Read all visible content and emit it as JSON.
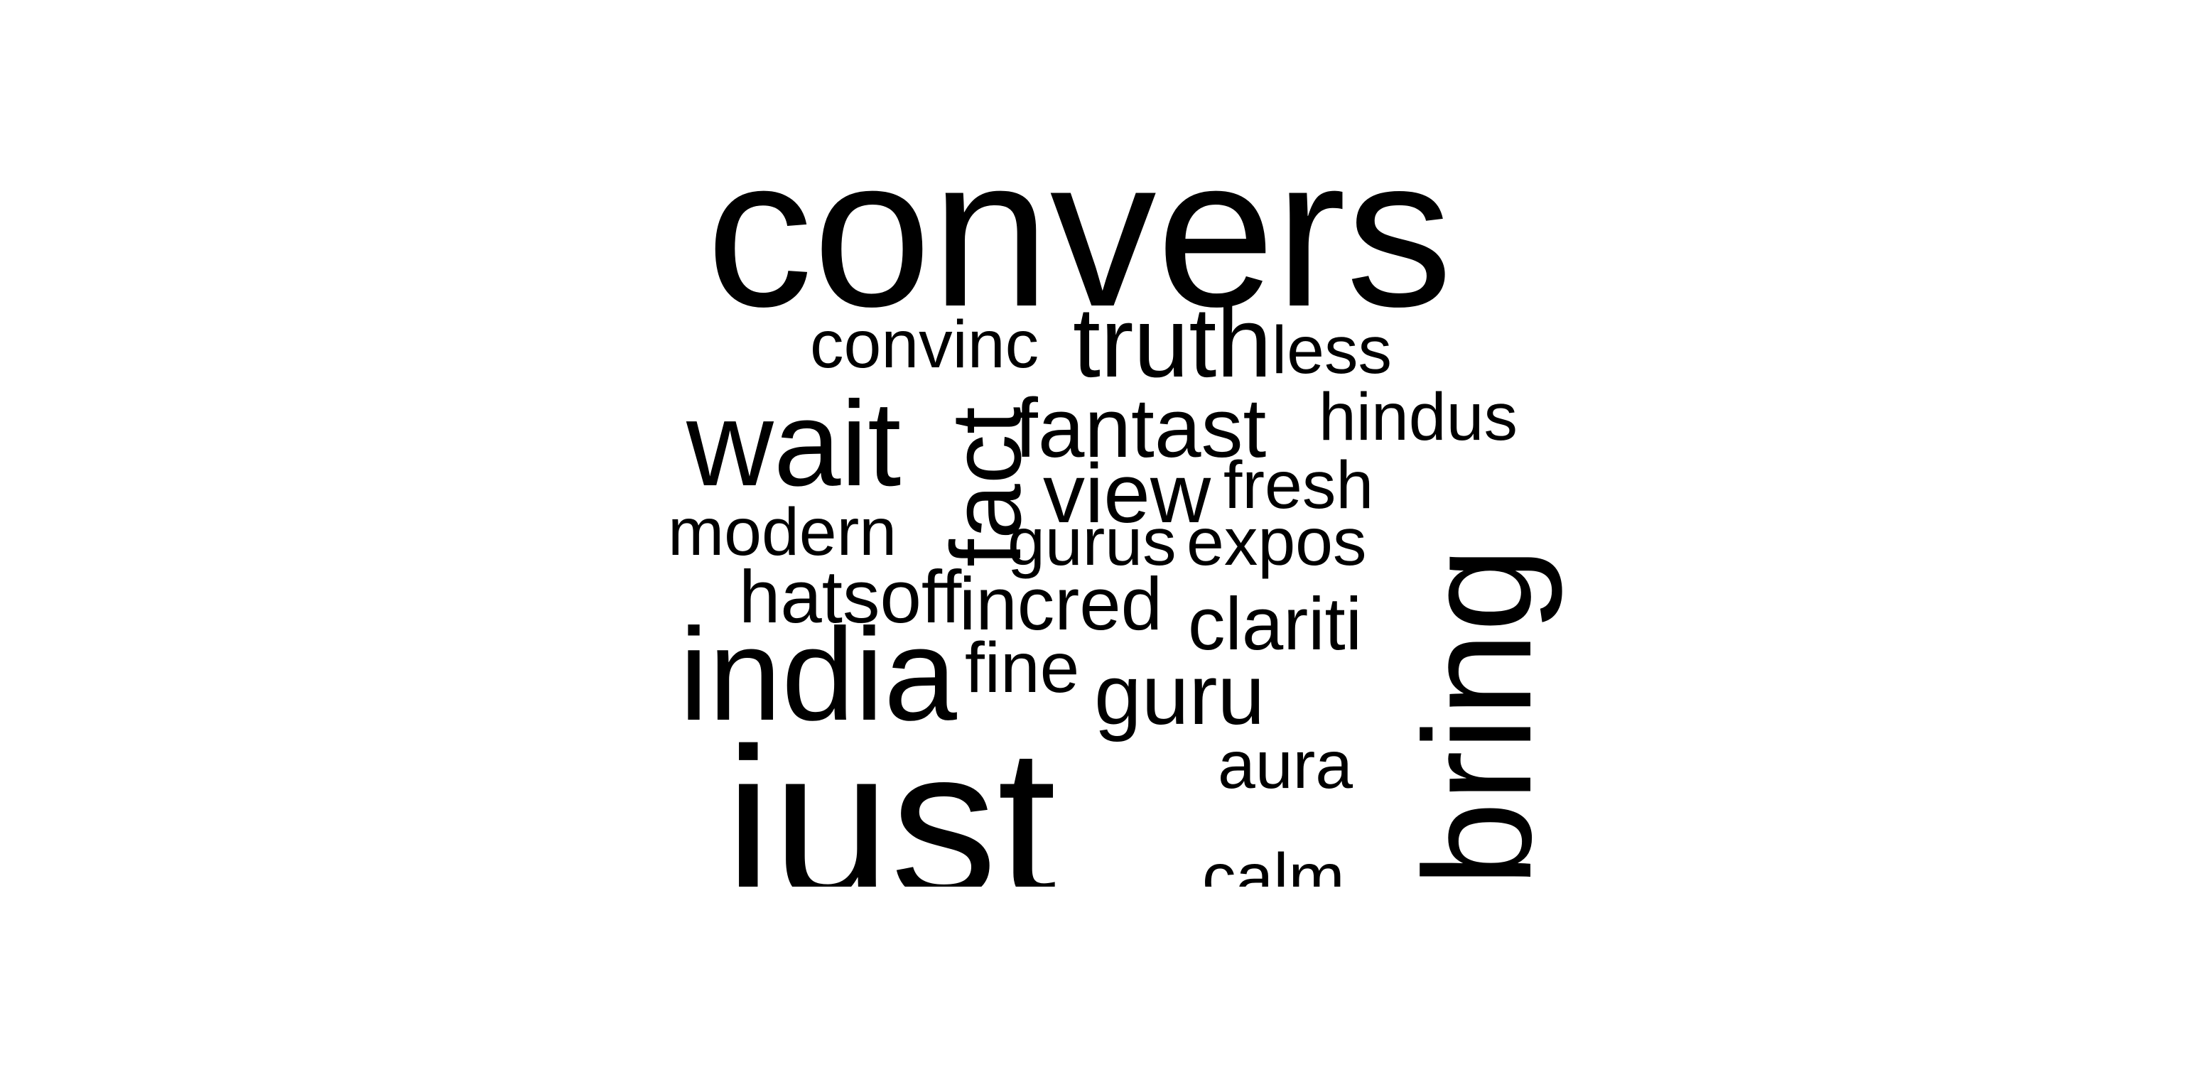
{
  "word_cloud": {
    "text_color": "#000000",
    "background_color": "#ffffff",
    "words": [
      {
        "text": "convers",
        "orientation": "horizontal"
      },
      {
        "text": "just",
        "orientation": "horizontal"
      },
      {
        "text": "bring",
        "orientation": "vertical"
      },
      {
        "text": "india",
        "orientation": "horizontal"
      },
      {
        "text": "wait",
        "orientation": "horizontal"
      },
      {
        "text": "fact",
        "orientation": "vertical"
      },
      {
        "text": "truth",
        "orientation": "horizontal"
      },
      {
        "text": "fantast",
        "orientation": "horizontal"
      },
      {
        "text": "view",
        "orientation": "horizontal"
      },
      {
        "text": "guru",
        "orientation": "horizontal"
      },
      {
        "text": "convinc",
        "orientation": "horizontal"
      },
      {
        "text": "less",
        "orientation": "horizontal"
      },
      {
        "text": "hindus",
        "orientation": "horizontal"
      },
      {
        "text": "fresh",
        "orientation": "horizontal"
      },
      {
        "text": "modern",
        "orientation": "horizontal"
      },
      {
        "text": "gurus",
        "orientation": "horizontal"
      },
      {
        "text": "expos",
        "orientation": "horizontal"
      },
      {
        "text": "hatsoff",
        "orientation": "horizontal"
      },
      {
        "text": "incred",
        "orientation": "horizontal"
      },
      {
        "text": "clariti",
        "orientation": "horizontal"
      },
      {
        "text": "fine",
        "orientation": "horizontal"
      },
      {
        "text": "aura",
        "orientation": "horizontal"
      },
      {
        "text": "calm",
        "orientation": "horizontal"
      }
    ]
  }
}
